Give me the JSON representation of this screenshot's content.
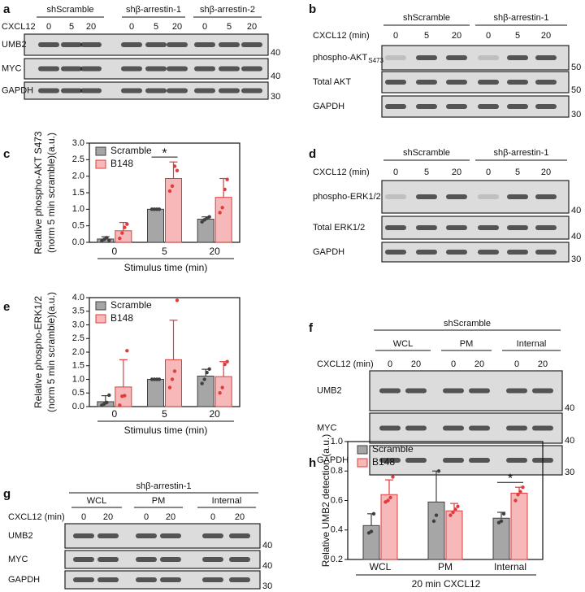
{
  "blots": [
    {
      "panel": "a",
      "stimulus": "CXCL12",
      "groups": [
        {
          "label": "shScramble",
          "lanes": [
            "0",
            "5",
            "20"
          ]
        },
        {
          "label": "shβ-arrestin-1",
          "lanes": [
            "0",
            "5",
            "20"
          ]
        },
        {
          "label": "shβ-arrestin-2",
          "lanes": [
            "0",
            "5",
            "20"
          ]
        }
      ],
      "rows": [
        {
          "label": "UMB2",
          "marker": "40"
        },
        {
          "label": "MYC",
          "marker": "40"
        },
        {
          "label": "GAPDH",
          "marker": "30"
        }
      ]
    },
    {
      "panel": "b",
      "stimulus": "CXCL12 (min)",
      "groups": [
        {
          "label": "shScramble",
          "lanes": [
            "0",
            "5",
            "20"
          ]
        },
        {
          "label": "shβ-arrestin-1",
          "lanes": [
            "0",
            "5",
            "20"
          ]
        }
      ],
      "rows": [
        {
          "label": "phospho-AKT",
          "subscript": "S473",
          "marker": "50"
        },
        {
          "label": "Total AKT",
          "marker": "50"
        },
        {
          "label": "GAPDH",
          "marker": "30"
        }
      ]
    },
    {
      "panel": "d",
      "stimulus": "CXCL12 (min)",
      "groups": [
        {
          "label": "shScramble",
          "lanes": [
            "0",
            "5",
            "20"
          ]
        },
        {
          "label": "shβ-arrestin-1",
          "lanes": [
            "0",
            "5",
            "20"
          ]
        }
      ],
      "rows": [
        {
          "label": "phospho-ERK1/2",
          "marker": "40"
        },
        {
          "label": "Total ERK1/2",
          "marker": "40"
        },
        {
          "label": "GAPDH",
          "marker": "30"
        }
      ]
    },
    {
      "panel": "f",
      "title": "shScramble",
      "stimulus": "CXCL12 (min)",
      "groups": [
        {
          "label": "WCL",
          "lanes": [
            "0",
            "20"
          ]
        },
        {
          "label": "PM",
          "lanes": [
            "0",
            "20"
          ]
        },
        {
          "label": "Internal",
          "lanes": [
            "0",
            "20"
          ]
        }
      ],
      "rows": [
        {
          "label": "UMB2",
          "marker": "40"
        },
        {
          "label": "MYC",
          "marker": "40"
        },
        {
          "label": "GAPDH",
          "marker": "30"
        }
      ]
    },
    {
      "panel": "g",
      "title": "shβ-arrestin-1",
      "stimulus": "CXCL12 (min)",
      "groups": [
        {
          "label": "WCL",
          "lanes": [
            "0",
            "20"
          ]
        },
        {
          "label": "PM",
          "lanes": [
            "0",
            "20"
          ]
        },
        {
          "label": "Internal",
          "lanes": [
            "0",
            "20"
          ]
        }
      ],
      "rows": [
        {
          "label": "UMB2",
          "marker": "40"
        },
        {
          "label": "MYC",
          "marker": "40"
        },
        {
          "label": "GAPDH",
          "marker": "30"
        }
      ]
    }
  ],
  "chart_data": [
    {
      "panel": "c",
      "type": "bar",
      "ylabel": [
        "Relative phospho-AKT S473",
        "(norm 5 min scramble)(a.u.)"
      ],
      "xlabel": "Stimulus time (min)",
      "categories": [
        "0",
        "5",
        "20"
      ],
      "series": [
        {
          "name": "Scramble",
          "color": "#a6a6a6",
          "edgecolor": "#404040",
          "values": [
            0.1,
            1.0,
            0.7
          ],
          "errors": [
            0.07,
            0,
            0.07
          ],
          "points": [
            [
              0.05,
              0.09,
              0.14,
              0.06
            ],
            [
              1,
              1,
              1,
              1
            ],
            [
              0.62,
              0.68,
              0.73,
              0.77
            ]
          ]
        },
        {
          "name": "B148",
          "color": "#f6b8b8",
          "edgecolor": "#e03c3c",
          "values": [
            0.35,
            1.93,
            1.36
          ],
          "errors": [
            0.25,
            0.5,
            0.57
          ],
          "points": [
            [
              0.12,
              0.28,
              0.45,
              0.55
            ],
            [
              1.55,
              1.7,
              2.3,
              2.17
            ],
            [
              0.9,
              1.05,
              1.6,
              1.9
            ]
          ]
        }
      ],
      "ylim": [
        0,
        3
      ],
      "yticks": [
        {
          "value": 0,
          "label": "0.0"
        },
        {
          "value": 0.5,
          "label": "0.5"
        },
        {
          "value": 1,
          "label": "1.0"
        },
        {
          "value": 1.5,
          "label": "1.5"
        },
        {
          "value": 2,
          "label": "2.0"
        },
        {
          "value": 2.5,
          "label": "2.5"
        },
        {
          "value": 3,
          "label": "3.0"
        }
      ],
      "legend": "upper left",
      "annotations": [
        {
          "text": "*",
          "category": "5"
        }
      ]
    },
    {
      "panel": "e",
      "type": "bar",
      "ylabel": [
        "Relative phospho-ERK1/2",
        "(norm 5 min scramble)(a.u.)"
      ],
      "xlabel": "Stimulus time (min)",
      "categories": [
        "0",
        "5",
        "20"
      ],
      "series": [
        {
          "name": "Scramble",
          "color": "#a6a6a6",
          "edgecolor": "#404040",
          "values": [
            0.18,
            1.0,
            1.12
          ],
          "errors": [
            0.22,
            0,
            0.25
          ],
          "points": [
            [
              0.05,
              0.1,
              0.15,
              0.42
            ],
            [
              1,
              1,
              1,
              1
            ],
            [
              0.85,
              1.0,
              1.25,
              1.38
            ]
          ]
        },
        {
          "name": "B148",
          "color": "#f6b8b8",
          "edgecolor": "#e03c3c",
          "values": [
            0.72,
            1.72,
            1.1
          ],
          "errors": [
            1.0,
            1.45,
            0.55
          ],
          "points": [
            [
              0.05,
              0.38,
              0.4,
              2.05
            ],
            [
              0.7,
              1.0,
              1.3,
              3.9
            ],
            [
              0.5,
              0.7,
              1.55,
              1.65
            ]
          ]
        }
      ],
      "ylim": [
        0,
        4
      ],
      "yticks": [
        {
          "value": 0,
          "label": "0.0"
        },
        {
          "value": 0.5,
          "label": "0.5"
        },
        {
          "value": 1,
          "label": "1.0"
        },
        {
          "value": 1.5,
          "label": "1.5"
        },
        {
          "value": 2,
          "label": "2.0"
        },
        {
          "value": 2.5,
          "label": "2.5"
        },
        {
          "value": 3,
          "label": "3.0"
        },
        {
          "value": 3.5,
          "label": "3.5"
        },
        {
          "value": 4,
          "label": "4.0"
        }
      ],
      "legend": "upper left"
    },
    {
      "panel": "h",
      "type": "bar",
      "ylabel": "Relative UMB2 detection (a.u.)",
      "xlabel": "20 min CXCL12",
      "categories": [
        "WCL",
        "PM",
        "Internal"
      ],
      "series": [
        {
          "name": "Scramble",
          "color": "#a6a6a6",
          "edgecolor": "#404040",
          "values": [
            0.43,
            0.59,
            0.48
          ],
          "errors": [
            0.08,
            0.21,
            0.04
          ],
          "points": [
            [
              0.38,
              0.39,
              0.51
            ],
            [
              0.46,
              0.5,
              0.8
            ],
            [
              0.45,
              0.46,
              0.51
            ]
          ]
        },
        {
          "name": "B148",
          "color": "#f6b8b8",
          "edgecolor": "#e03c3c",
          "values": [
            0.64,
            0.53,
            0.65
          ],
          "errors": [
            0.1,
            0.05,
            0.04
          ],
          "points": [
            [
              0.59,
              0.6,
              0.62,
              0.76
            ],
            [
              0.5,
              0.52,
              0.54,
              0.56
            ],
            [
              0.6,
              0.64,
              0.66,
              0.69
            ]
          ]
        }
      ],
      "ylim": [
        0.2,
        1
      ],
      "yticks": [
        0.2,
        0.4,
        0.6,
        0.8,
        {
          "value": 1,
          "label": "1.0"
        }
      ],
      "legend": "upper left",
      "annotations": [
        {
          "text": "*",
          "category": "Internal"
        }
      ]
    }
  ]
}
